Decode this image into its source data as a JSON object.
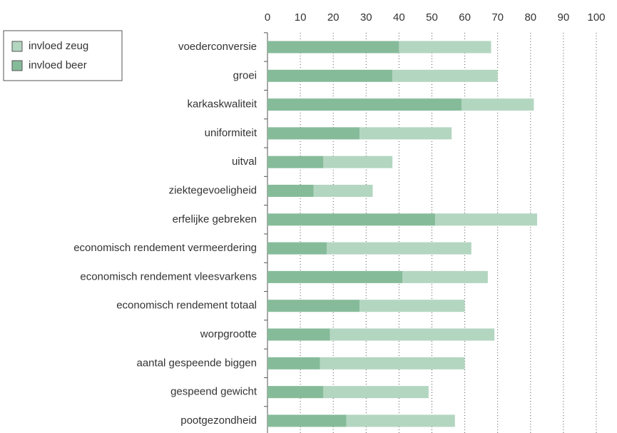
{
  "chart_data": {
    "type": "stacked-bar-horizontal",
    "categories": [
      "voederconversie",
      "groei",
      "karkaskwaliteit",
      "uniformiteit",
      "uitval",
      "ziektegevoeligheid",
      "erfelijke gebreken",
      "economisch rendement vermeerdering",
      "economisch rendement vleesvarkens",
      "economisch rendement totaal",
      "worpgrootte",
      "aantal gespeende biggen",
      "gespeend gewicht",
      "pootgezondheid"
    ],
    "series": [
      {
        "name": "invloed zeug",
        "color": "#b3d6c0",
        "values": [
          28,
          32,
          22,
          28,
          21,
          18,
          31,
          44,
          26,
          32,
          50,
          44,
          32,
          33
        ]
      },
      {
        "name": "invloed beer",
        "color": "#86bb9a",
        "values": [
          40,
          38,
          59,
          28,
          17,
          14,
          51,
          18,
          41,
          28,
          19,
          16,
          17,
          24
        ]
      }
    ],
    "xlim": [
      0,
      100
    ],
    "xticks": [
      0,
      10,
      20,
      30,
      40,
      50,
      60,
      70,
      80,
      90,
      100
    ],
    "grid": true,
    "legend": "top-left"
  }
}
